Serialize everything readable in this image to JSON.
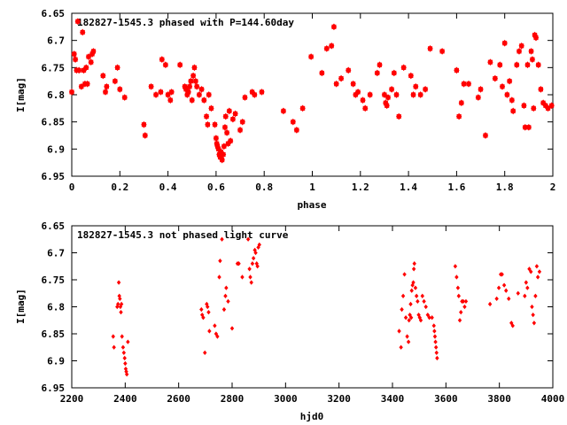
{
  "chart_data": [
    {
      "type": "scatter",
      "title": "182827-1545.3 phased with P=144.60day",
      "xlabel": "phase",
      "ylabel": "I[mag]",
      "xlim": [
        0,
        2
      ],
      "ylim": [
        6.65,
        6.95
      ],
      "y_inverted": true,
      "grid": false,
      "color": "#ff0000",
      "marker": "filled-diamond",
      "xticks": [
        {
          "v": 0,
          "label": "0"
        },
        {
          "v": 0.2,
          "label": "0.2"
        },
        {
          "v": 0.4,
          "label": "0.4"
        },
        {
          "v": 0.6,
          "label": "0.6"
        },
        {
          "v": 0.8,
          "label": "0.8"
        },
        {
          "v": 1,
          "label": "1"
        },
        {
          "v": 1.2,
          "label": "1.2"
        },
        {
          "v": 1.4,
          "label": "1.4"
        },
        {
          "v": 1.6,
          "label": "1.6"
        },
        {
          "v": 1.8,
          "label": "1.8"
        },
        {
          "v": 2,
          "label": "2"
        }
      ],
      "yticks": [
        {
          "v": 6.65,
          "label": "6.65"
        },
        {
          "v": 6.7,
          "label": "6.7"
        },
        {
          "v": 6.75,
          "label": "6.75"
        },
        {
          "v": 6.8,
          "label": "6.8"
        },
        {
          "v": 6.85,
          "label": "6.85"
        },
        {
          "v": 6.9,
          "label": "6.9"
        },
        {
          "v": 6.95,
          "label": "6.95"
        }
      ],
      "points": [
        [
          0.0,
          6.795
        ],
        [
          0.01,
          6.725
        ],
        [
          0.015,
          6.735
        ],
        [
          0.02,
          6.755
        ],
        [
          0.025,
          6.665
        ],
        [
          0.03,
          6.755
        ],
        [
          0.04,
          6.785
        ],
        [
          0.045,
          6.685
        ],
        [
          0.05,
          6.755
        ],
        [
          0.055,
          6.78
        ],
        [
          0.06,
          6.75
        ],
        [
          0.065,
          6.78
        ],
        [
          0.07,
          6.73
        ],
        [
          0.08,
          6.74
        ],
        [
          0.085,
          6.725
        ],
        [
          0.09,
          6.72
        ],
        [
          0.13,
          6.765
        ],
        [
          0.14,
          6.795
        ],
        [
          0.145,
          6.785
        ],
        [
          0.18,
          6.775
        ],
        [
          0.19,
          6.75
        ],
        [
          0.2,
          6.79
        ],
        [
          0.22,
          6.805
        ],
        [
          0.3,
          6.855
        ],
        [
          0.305,
          6.875
        ],
        [
          0.33,
          6.785
        ],
        [
          0.35,
          6.8
        ],
        [
          0.37,
          6.795
        ],
        [
          0.375,
          6.735
        ],
        [
          0.39,
          6.745
        ],
        [
          0.4,
          6.8
        ],
        [
          0.41,
          6.81
        ],
        [
          0.415,
          6.795
        ],
        [
          0.45,
          6.745
        ],
        [
          0.47,
          6.785
        ],
        [
          0.475,
          6.79
        ],
        [
          0.48,
          6.8
        ],
        [
          0.485,
          6.795
        ],
        [
          0.49,
          6.785
        ],
        [
          0.495,
          6.775
        ],
        [
          0.5,
          6.81
        ],
        [
          0.505,
          6.765
        ],
        [
          0.51,
          6.75
        ],
        [
          0.515,
          6.775
        ],
        [
          0.52,
          6.785
        ],
        [
          0.53,
          6.8
        ],
        [
          0.54,
          6.79
        ],
        [
          0.55,
          6.81
        ],
        [
          0.56,
          6.84
        ],
        [
          0.565,
          6.855
        ],
        [
          0.57,
          6.8
        ],
        [
          0.58,
          6.825
        ],
        [
          0.595,
          6.855
        ],
        [
          0.6,
          6.88
        ],
        [
          0.603,
          6.89
        ],
        [
          0.606,
          6.895
        ],
        [
          0.61,
          6.9
        ],
        [
          0.613,
          6.91
        ],
        [
          0.617,
          6.915
        ],
        [
          0.62,
          6.905
        ],
        [
          0.625,
          6.92
        ],
        [
          0.63,
          6.91
        ],
        [
          0.633,
          6.895
        ],
        [
          0.637,
          6.86
        ],
        [
          0.64,
          6.84
        ],
        [
          0.645,
          6.87
        ],
        [
          0.65,
          6.89
        ],
        [
          0.655,
          6.83
        ],
        [
          0.66,
          6.885
        ],
        [
          0.67,
          6.845
        ],
        [
          0.68,
          6.835
        ],
        [
          0.7,
          6.865
        ],
        [
          0.71,
          6.85
        ],
        [
          0.72,
          6.805
        ],
        [
          0.75,
          6.795
        ],
        [
          0.76,
          6.8
        ],
        [
          0.79,
          6.795
        ],
        [
          0.88,
          6.83
        ],
        [
          0.92,
          6.85
        ],
        [
          0.935,
          6.865
        ],
        [
          0.96,
          6.825
        ],
        [
          0.995,
          6.73
        ],
        [
          1.04,
          6.76
        ],
        [
          1.06,
          6.715
        ],
        [
          1.08,
          6.71
        ],
        [
          1.09,
          6.675
        ],
        [
          1.1,
          6.78
        ],
        [
          1.12,
          6.77
        ],
        [
          1.15,
          6.755
        ],
        [
          1.17,
          6.78
        ],
        [
          1.18,
          6.8
        ],
        [
          1.19,
          6.795
        ],
        [
          1.21,
          6.81
        ],
        [
          1.22,
          6.825
        ],
        [
          1.24,
          6.8
        ],
        [
          1.27,
          6.76
        ],
        [
          1.28,
          6.745
        ],
        [
          1.3,
          6.8
        ],
        [
          1.305,
          6.815
        ],
        [
          1.31,
          6.82
        ],
        [
          1.315,
          6.805
        ],
        [
          1.33,
          6.79
        ],
        [
          1.34,
          6.76
        ],
        [
          1.35,
          6.8
        ],
        [
          1.36,
          6.84
        ],
        [
          1.38,
          6.75
        ],
        [
          1.41,
          6.765
        ],
        [
          1.42,
          6.8
        ],
        [
          1.43,
          6.785
        ],
        [
          1.45,
          6.8
        ],
        [
          1.47,
          6.79
        ],
        [
          1.49,
          6.715
        ],
        [
          1.54,
          6.72
        ],
        [
          1.6,
          6.755
        ],
        [
          1.61,
          6.84
        ],
        [
          1.62,
          6.815
        ],
        [
          1.63,
          6.78
        ],
        [
          1.65,
          6.78
        ],
        [
          1.69,
          6.805
        ],
        [
          1.7,
          6.79
        ],
        [
          1.72,
          6.875
        ],
        [
          1.74,
          6.74
        ],
        [
          1.76,
          6.77
        ],
        [
          1.78,
          6.745
        ],
        [
          1.79,
          6.785
        ],
        [
          1.8,
          6.705
        ],
        [
          1.81,
          6.8
        ],
        [
          1.82,
          6.775
        ],
        [
          1.83,
          6.81
        ],
        [
          1.835,
          6.83
        ],
        [
          1.85,
          6.745
        ],
        [
          1.86,
          6.72
        ],
        [
          1.87,
          6.71
        ],
        [
          1.88,
          6.82
        ],
        [
          1.885,
          6.86
        ],
        [
          1.895,
          6.745
        ],
        [
          1.9,
          6.86
        ],
        [
          1.91,
          6.72
        ],
        [
          1.915,
          6.735
        ],
        [
          1.92,
          6.825
        ],
        [
          1.925,
          6.69
        ],
        [
          1.93,
          6.695
        ],
        [
          1.94,
          6.745
        ],
        [
          1.95,
          6.79
        ],
        [
          1.96,
          6.815
        ],
        [
          1.97,
          6.82
        ],
        [
          1.98,
          6.825
        ],
        [
          1.995,
          6.82
        ]
      ]
    },
    {
      "type": "scatter",
      "title": "182827-1545.3 not phased light curve",
      "xlabel": "hjd0",
      "ylabel": "I[mag]",
      "xlim": [
        2200,
        4000
      ],
      "ylim": [
        6.65,
        6.95
      ],
      "y_inverted": true,
      "grid": false,
      "color": "#ff0000",
      "marker": "small-diamond",
      "xticks": [
        {
          "v": 2200,
          "label": "2200"
        },
        {
          "v": 2400,
          "label": "2400"
        },
        {
          "v": 2600,
          "label": "2600"
        },
        {
          "v": 2800,
          "label": "2800"
        },
        {
          "v": 3000,
          "label": "3000"
        },
        {
          "v": 3200,
          "label": "3200"
        },
        {
          "v": 3400,
          "label": "3400"
        },
        {
          "v": 3600,
          "label": "3600"
        },
        {
          "v": 3800,
          "label": "3800"
        },
        {
          "v": 4000,
          "label": "4000"
        }
      ],
      "yticks": [
        {
          "v": 6.65,
          "label": "6.65"
        },
        {
          "v": 6.7,
          "label": "6.7"
        },
        {
          "v": 6.75,
          "label": "6.75"
        },
        {
          "v": 6.8,
          "label": "6.8"
        },
        {
          "v": 6.85,
          "label": "6.85"
        },
        {
          "v": 6.9,
          "label": "6.9"
        },
        {
          "v": 6.95,
          "label": "6.95"
        }
      ],
      "points": [
        [
          2355,
          6.855
        ],
        [
          2358,
          6.875
        ],
        [
          2370,
          6.8
        ],
        [
          2373,
          6.795
        ],
        [
          2376,
          6.755
        ],
        [
          2378,
          6.78
        ],
        [
          2380,
          6.785
        ],
        [
          2382,
          6.8
        ],
        [
          2384,
          6.81
        ],
        [
          2386,
          6.795
        ],
        [
          2388,
          6.855
        ],
        [
          2392,
          6.875
        ],
        [
          2395,
          6.885
        ],
        [
          2398,
          6.895
        ],
        [
          2400,
          6.905
        ],
        [
          2402,
          6.915
        ],
        [
          2404,
          6.92
        ],
        [
          2406,
          6.925
        ],
        [
          2410,
          6.865
        ],
        [
          2685,
          6.805
        ],
        [
          2688,
          6.815
        ],
        [
          2692,
          6.82
        ],
        [
          2698,
          6.885
        ],
        [
          2705,
          6.795
        ],
        [
          2708,
          6.8
        ],
        [
          2712,
          6.81
        ],
        [
          2715,
          6.845
        ],
        [
          2735,
          6.835
        ],
        [
          2740,
          6.85
        ],
        [
          2745,
          6.855
        ],
        [
          2752,
          6.745
        ],
        [
          2755,
          6.715
        ],
        [
          2762,
          6.675
        ],
        [
          2770,
          6.805
        ],
        [
          2775,
          6.78
        ],
        [
          2778,
          6.765
        ],
        [
          2785,
          6.79
        ],
        [
          2800,
          6.84
        ],
        [
          2820,
          6.72
        ],
        [
          2825,
          6.72
        ],
        [
          2838,
          6.745
        ],
        [
          2860,
          6.675
        ],
        [
          2865,
          6.73
        ],
        [
          2868,
          6.745
        ],
        [
          2872,
          6.755
        ],
        [
          2876,
          6.72
        ],
        [
          2880,
          6.71
        ],
        [
          2885,
          6.695
        ],
        [
          2888,
          6.7
        ],
        [
          2892,
          6.72
        ],
        [
          2895,
          6.725
        ],
        [
          2898,
          6.69
        ],
        [
          2902,
          6.685
        ],
        [
          3425,
          6.845
        ],
        [
          3432,
          6.875
        ],
        [
          3435,
          6.805
        ],
        [
          3440,
          6.78
        ],
        [
          3445,
          6.74
        ],
        [
          3450,
          6.82
        ],
        [
          3455,
          6.855
        ],
        [
          3460,
          6.865
        ],
        [
          3462,
          6.825
        ],
        [
          3465,
          6.815
        ],
        [
          3468,
          6.795
        ],
        [
          3470,
          6.82
        ],
        [
          3472,
          6.77
        ],
        [
          3475,
          6.76
        ],
        [
          3478,
          6.755
        ],
        [
          3480,
          6.73
        ],
        [
          3482,
          6.72
        ],
        [
          3486,
          6.765
        ],
        [
          3490,
          6.78
        ],
        [
          3494,
          6.79
        ],
        [
          3498,
          6.815
        ],
        [
          3502,
          6.82
        ],
        [
          3506,
          6.825
        ],
        [
          3512,
          6.78
        ],
        [
          3518,
          6.79
        ],
        [
          3525,
          6.8
        ],
        [
          3532,
          6.815
        ],
        [
          3538,
          6.82
        ],
        [
          3548,
          6.82
        ],
        [
          3555,
          6.835
        ],
        [
          3557,
          6.845
        ],
        [
          3559,
          6.855
        ],
        [
          3561,
          6.865
        ],
        [
          3563,
          6.875
        ],
        [
          3565,
          6.885
        ],
        [
          3567,
          6.895
        ],
        [
          3635,
          6.725
        ],
        [
          3640,
          6.745
        ],
        [
          3645,
          6.765
        ],
        [
          3648,
          6.78
        ],
        [
          3652,
          6.825
        ],
        [
          3656,
          6.81
        ],
        [
          3660,
          6.79
        ],
        [
          3665,
          6.79
        ],
        [
          3670,
          6.8
        ],
        [
          3675,
          6.79
        ],
        [
          3765,
          6.795
        ],
        [
          3790,
          6.785
        ],
        [
          3798,
          6.765
        ],
        [
          3805,
          6.74
        ],
        [
          3810,
          6.74
        ],
        [
          3818,
          6.76
        ],
        [
          3825,
          6.77
        ],
        [
          3835,
          6.785
        ],
        [
          3845,
          6.83
        ],
        [
          3850,
          6.835
        ],
        [
          3870,
          6.775
        ],
        [
          3895,
          6.78
        ],
        [
          3900,
          6.755
        ],
        [
          3905,
          6.765
        ],
        [
          3912,
          6.73
        ],
        [
          3918,
          6.735
        ],
        [
          3922,
          6.8
        ],
        [
          3926,
          6.815
        ],
        [
          3930,
          6.83
        ],
        [
          3935,
          6.78
        ],
        [
          3940,
          6.725
        ],
        [
          3944,
          6.745
        ],
        [
          3950,
          6.735
        ]
      ]
    }
  ]
}
